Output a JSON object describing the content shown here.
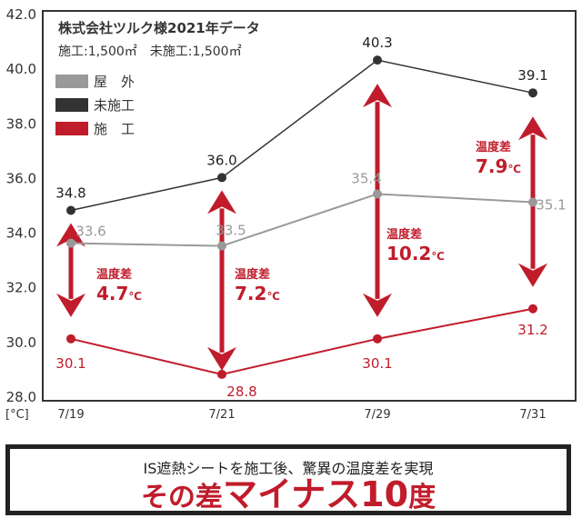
{
  "chart_data": {
    "type": "line",
    "title": "株式会社ツルク様2021年データ",
    "subtitle": "施工:1,500㎡　未施工:1,500㎡",
    "ylabel": "[°C]",
    "ylim": [
      28.0,
      42.0
    ],
    "yticks": [
      "42.0",
      "40.0",
      "38.0",
      "36.0",
      "34.0",
      "32.0",
      "30.0",
      "28.0"
    ],
    "categories": [
      "7/19",
      "7/21",
      "7/29",
      "7/31"
    ],
    "legend_position": "top-left",
    "series": [
      {
        "name": "屋　外",
        "color": "#999999",
        "values": [
          33.6,
          33.5,
          35.4,
          35.1
        ]
      },
      {
        "name": "未施工",
        "color": "#333333",
        "values": [
          34.8,
          36.0,
          40.3,
          39.1
        ]
      },
      {
        "name": "施　工",
        "color": "#c01c2b",
        "values": [
          30.1,
          28.8,
          30.1,
          31.2
        ]
      }
    ],
    "differences": [
      {
        "label": "温度差",
        "value": "4.7",
        "unit": "℃"
      },
      {
        "label": "温度差",
        "value": "7.2",
        "unit": "℃"
      },
      {
        "label": "温度差",
        "value": "10.2",
        "unit": "℃"
      },
      {
        "label": "温度差",
        "value": "7.9",
        "unit": "℃"
      }
    ]
  },
  "banner": {
    "line1": "IS遮熱シートを施工後、驚異の温度差を実現",
    "line2_a": "その差",
    "line2_b": "マイナス10",
    "line2_c": "度"
  }
}
